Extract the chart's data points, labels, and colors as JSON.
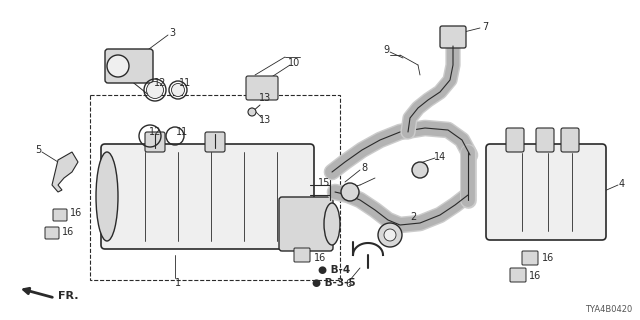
{
  "part_number": "TYA4B0420",
  "background_color": "#ffffff",
  "line_color": "#2a2a2a",
  "gray_fill": "#d8d8d8",
  "light_fill": "#efefef",
  "fr_label": "FR.",
  "b4_label": "● B-4",
  "b35_label": "● B-3-5",
  "figsize": [
    6.4,
    3.2
  ],
  "dpi": 100
}
